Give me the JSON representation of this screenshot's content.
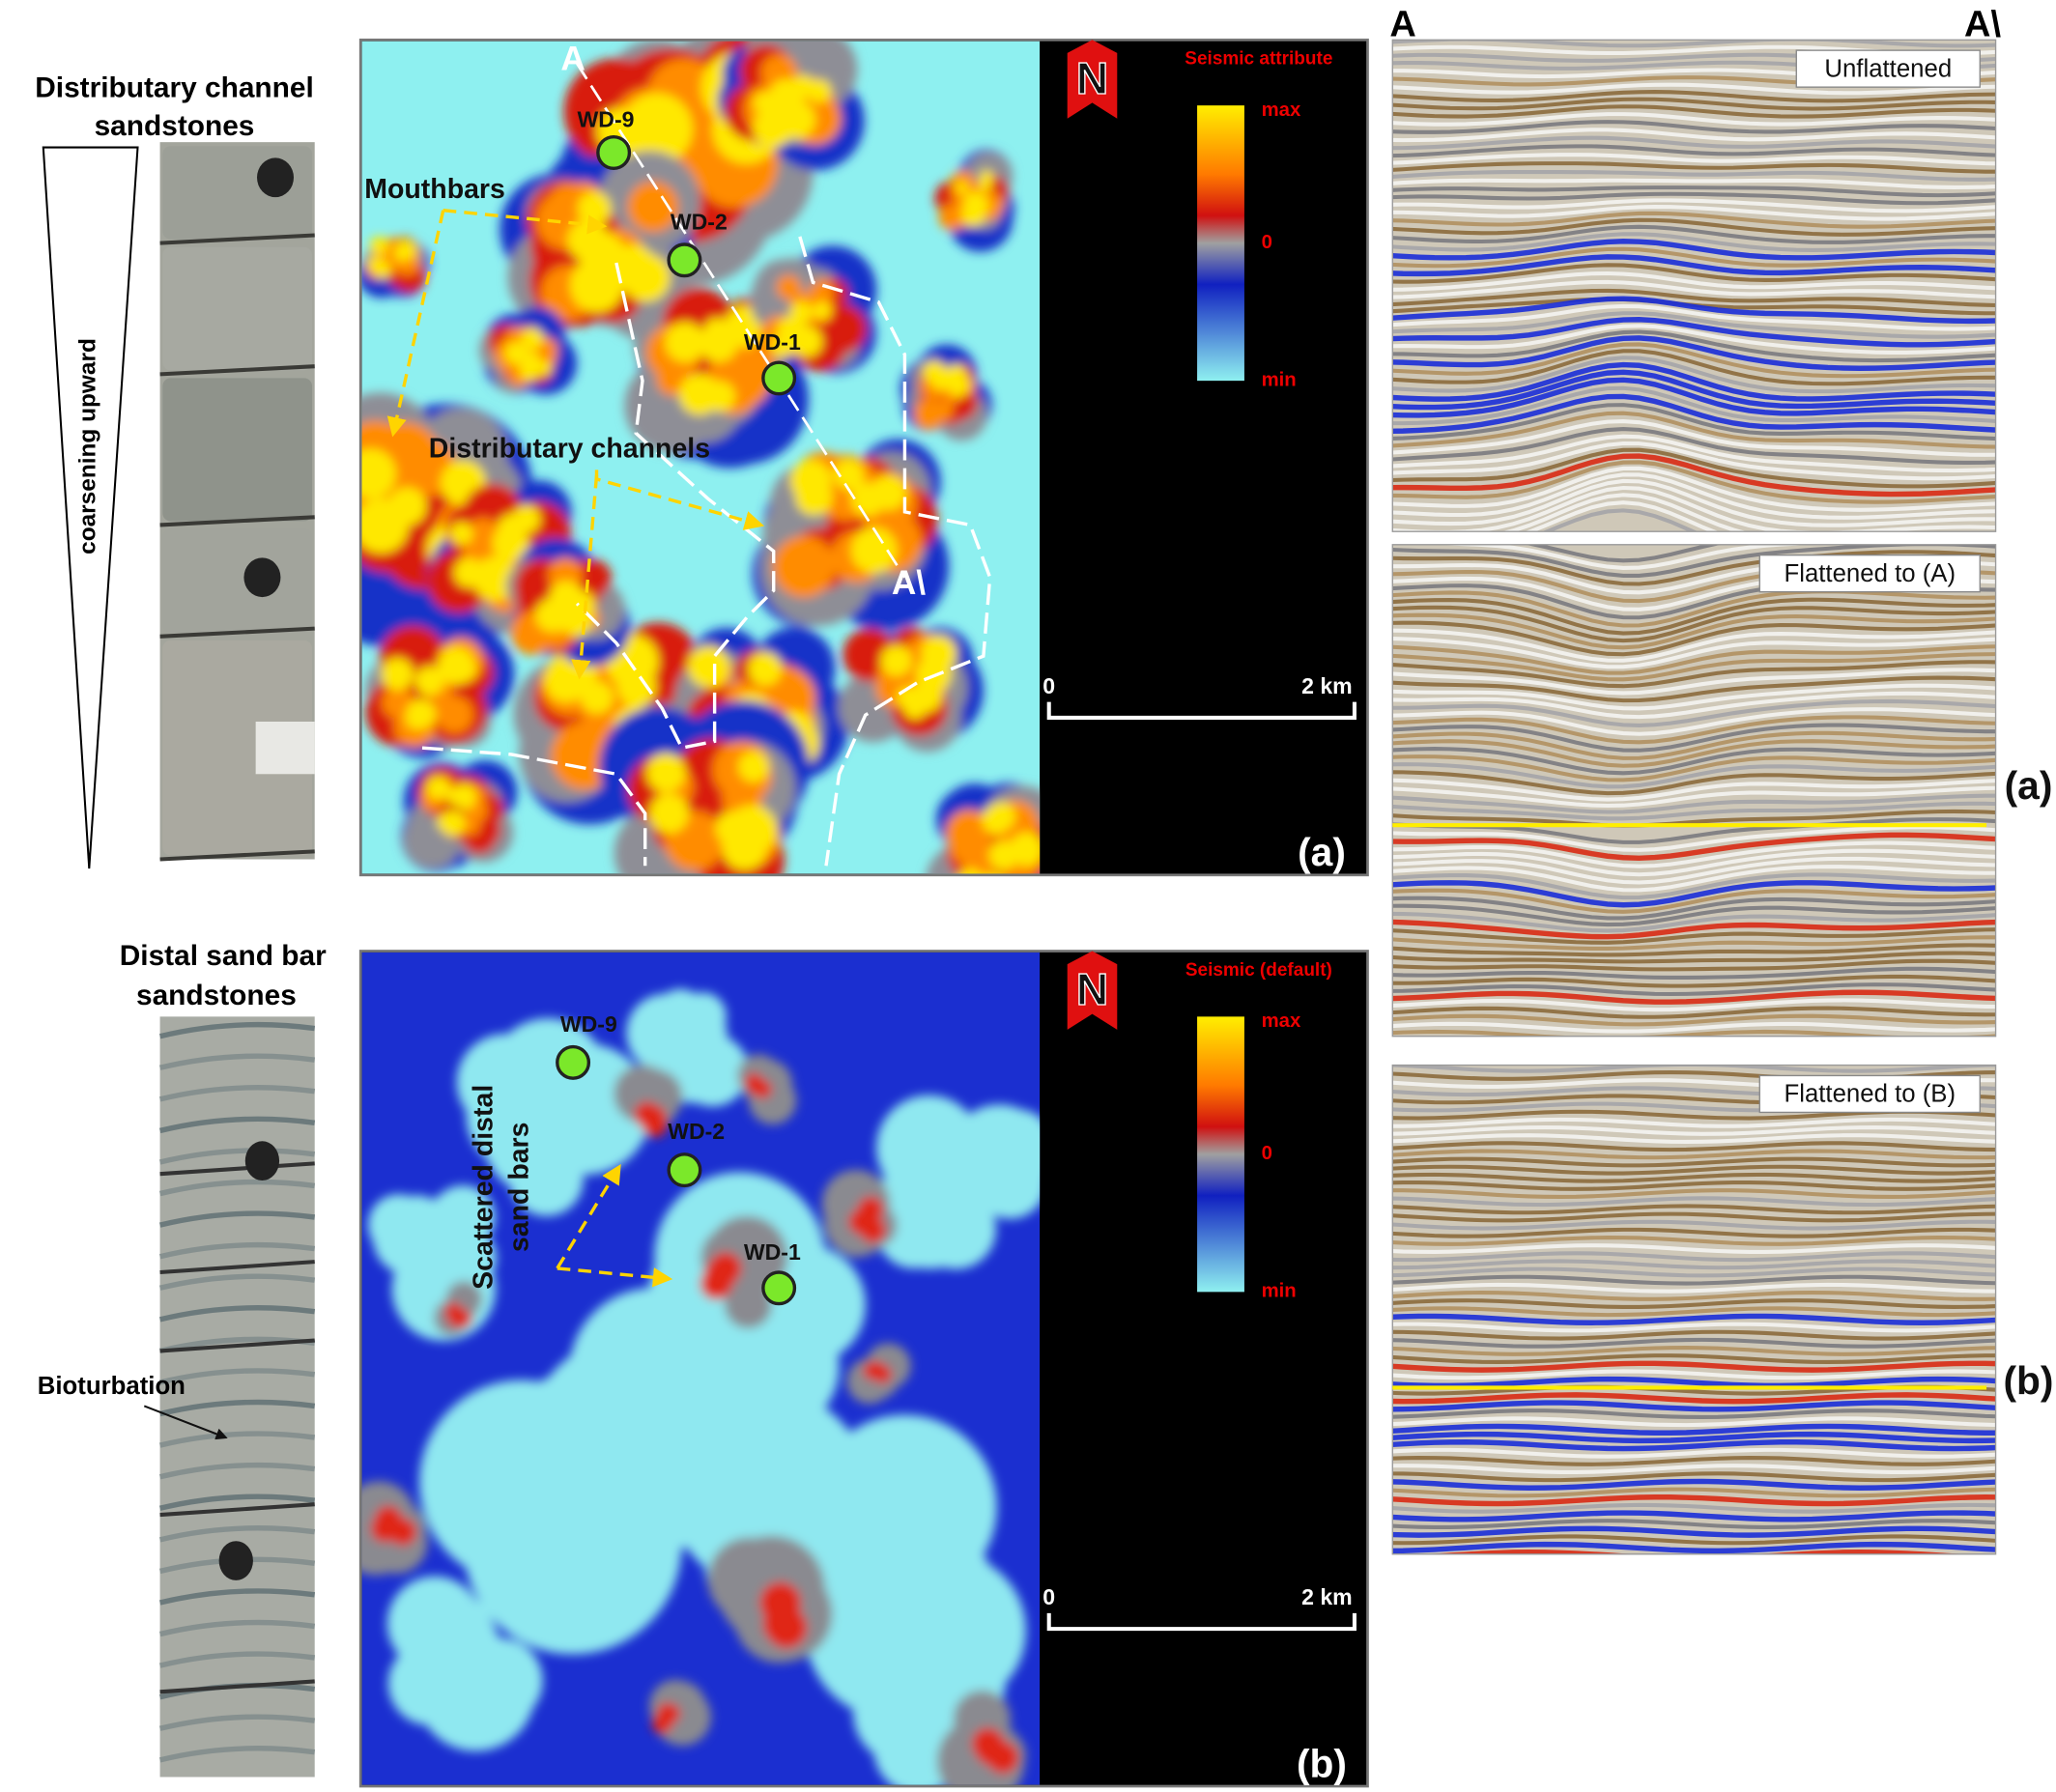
{
  "top_core": {
    "title": [
      "Distributary channel",
      "sandstones"
    ],
    "trend": "coarsening upward"
  },
  "bottom_core": {
    "title": [
      "Distal sand bar",
      "sandstones"
    ],
    "annotation": "Bioturbation"
  },
  "map_a": {
    "section_start": "A",
    "section_end": "A\\",
    "wells": [
      "WD-9",
      "WD-2",
      "WD-1"
    ],
    "annotations": [
      "Mouthbars",
      "Distributary channels"
    ],
    "legend": {
      "title": "Seismic attribute",
      "max": "max",
      "mid": "0",
      "min": "min"
    },
    "north": "N",
    "scale": {
      "start": "0",
      "end": "2 km"
    },
    "panel_label": "(a)"
  },
  "map_b": {
    "wells": [
      "WD-9",
      "WD-2",
      "WD-1"
    ],
    "annotations": [
      "Scattered distal",
      "sand bars"
    ],
    "legend": {
      "title": "Seismic (default)",
      "max": "max",
      "mid": "0",
      "min": "min"
    },
    "north": "N",
    "scale": {
      "start": "0",
      "end": "2 km"
    },
    "panel_label": "(b)"
  },
  "sections": {
    "start": "A",
    "end": "A\\",
    "panels": [
      {
        "label": "Unflattened"
      },
      {
        "label": "Flattened to (A)",
        "marker": "(a)"
      },
      {
        "label": "Flattened to (B)",
        "marker": "(b)"
      }
    ]
  }
}
